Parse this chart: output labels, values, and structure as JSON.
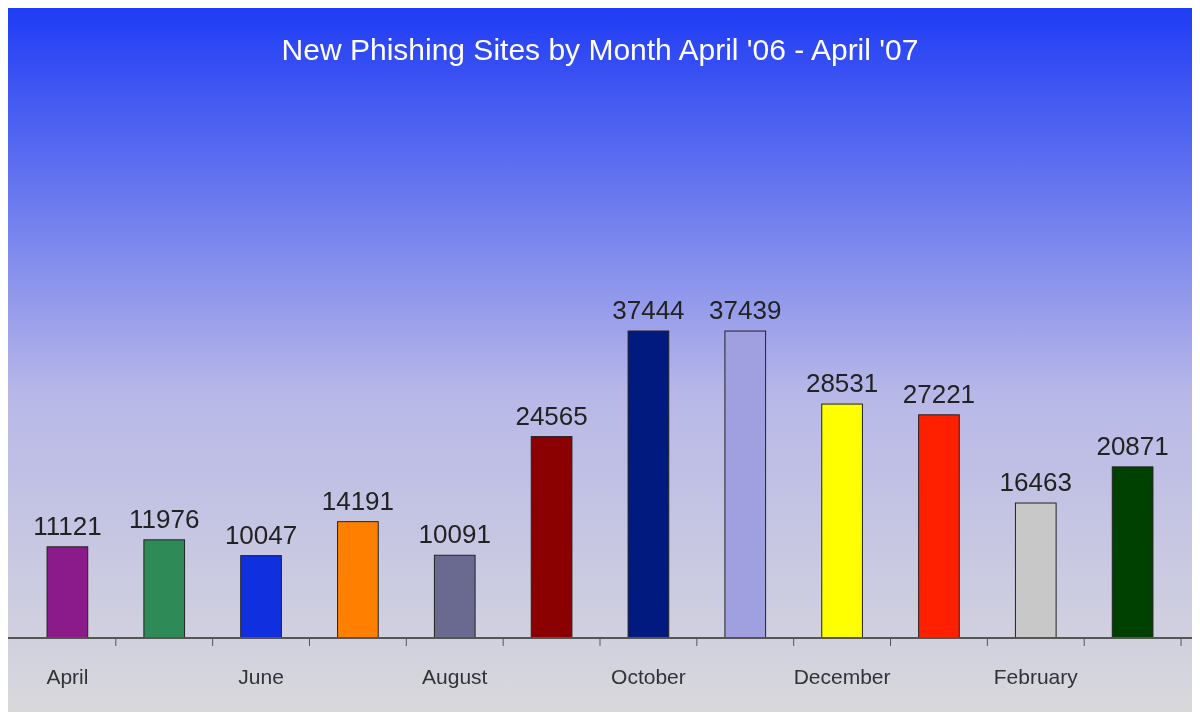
{
  "chart_data": {
    "type": "bar",
    "title": "New Phishing Sites by Month April '06 - April '07",
    "categories": [
      "April",
      null,
      "June",
      null,
      "August",
      null,
      "October",
      null,
      "December",
      null,
      "February",
      null
    ],
    "values": [
      11121,
      11976,
      10047,
      14191,
      10091,
      24565,
      37444,
      37439,
      28531,
      27221,
      16463,
      20871
    ],
    "colors": [
      "#8b1a8b",
      "#2e8b57",
      "#1030e0",
      "#ff8000",
      "#6a6a90",
      "#8b0000",
      "#001a80",
      "#a0a0e0",
      "#ffff00",
      "#ff2000",
      "#c8c8c8",
      "#004000"
    ],
    "data_labels": true
  }
}
